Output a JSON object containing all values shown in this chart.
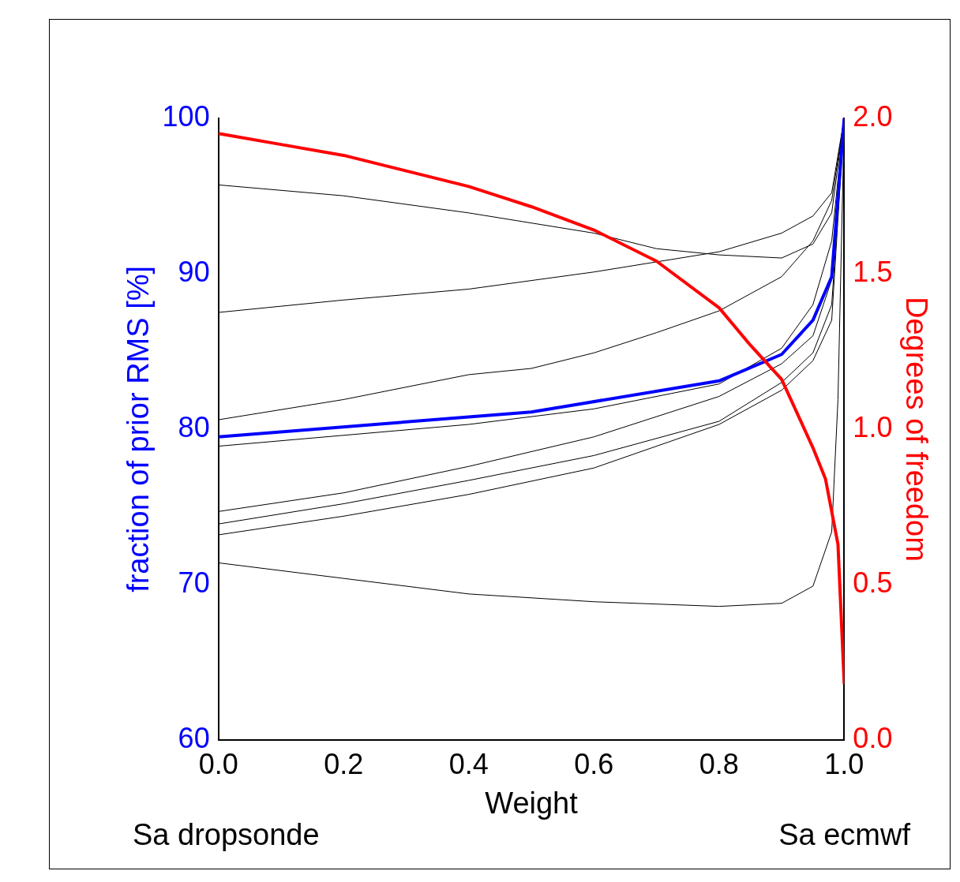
{
  "chart_data": {
    "type": "line",
    "xlabel": "Weight",
    "ylabel": "fraction of prior RMS [%]",
    "y2label": "Degrees of freedom",
    "xlim": [
      0,
      1
    ],
    "xticks": [
      {
        "value": 0,
        "label": "0.0"
      },
      {
        "value": 0.2,
        "label": "0.2"
      },
      {
        "value": 0.4,
        "label": "0.4"
      },
      {
        "value": 0.6,
        "label": "0.6"
      },
      {
        "value": 0.8,
        "label": "0.8"
      },
      {
        "value": 1,
        "label": "1.0"
      }
    ],
    "ylim": [
      60,
      100
    ],
    "yticks": [
      60,
      70,
      80,
      90,
      100
    ],
    "y2lim": [
      0,
      2
    ],
    "y2ticks": [
      {
        "value": 0,
        "label": "0.0"
      },
      {
        "value": 0.5,
        "label": "0.5"
      },
      {
        "value": 1,
        "label": "1.0"
      },
      {
        "value": 1.5,
        "label": "1.5"
      },
      {
        "value": 2,
        "label": "2.0"
      }
    ],
    "grid": false,
    "legend": false,
    "marker": "none",
    "line_style": "solid",
    "annotations": [
      "Sa dropsonde",
      "Sa ecmwf"
    ],
    "series": [
      {
        "color": "#000000",
        "x": [
          0,
          0.2,
          0.4,
          0.6,
          0.7,
          0.8,
          0.9,
          0.95,
          0.98,
          1
        ],
        "values": [
          95.7,
          95.0,
          93.9,
          92.6,
          91.6,
          91.2,
          91.0,
          91.9,
          93.9,
          100
        ]
      },
      {
        "color": "#000000",
        "x": [
          0,
          0.2,
          0.4,
          0.6,
          0.8,
          0.9,
          0.95,
          0.98,
          1
        ],
        "values": [
          87.5,
          88.3,
          89.0,
          90.1,
          91.4,
          92.6,
          93.7,
          95.2,
          100
        ]
      },
      {
        "color": "#000000",
        "x": [
          0,
          0.2,
          0.4,
          0.5,
          0.6,
          0.7,
          0.8,
          0.9,
          0.95,
          0.98,
          1
        ],
        "values": [
          80.6,
          81.9,
          83.5,
          83.9,
          84.9,
          86.2,
          87.6,
          89.8,
          92.1,
          94.7,
          100
        ]
      },
      {
        "color": "#000000",
        "x": [
          0,
          0.4,
          0.6,
          0.8,
          0.9,
          0.95,
          0.98,
          1
        ],
        "values": [
          78.9,
          80.3,
          81.3,
          82.9,
          85.2,
          88.0,
          92.1,
          100
        ]
      },
      {
        "color": "#000000",
        "x": [
          0,
          0.2,
          0.4,
          0.6,
          0.8,
          0.9,
          0.95,
          0.98,
          1
        ],
        "values": [
          74.7,
          75.9,
          77.6,
          79.5,
          82.1,
          84.2,
          86.0,
          89.6,
          100
        ]
      },
      {
        "color": "#000000",
        "x": [
          0,
          0.2,
          0.4,
          0.6,
          0.8,
          0.9,
          0.95,
          0.98,
          1
        ],
        "values": [
          73.9,
          75.2,
          76.7,
          78.3,
          80.5,
          83.0,
          84.9,
          88.0,
          100
        ]
      },
      {
        "color": "#000000",
        "x": [
          0,
          0.2,
          0.4,
          0.6,
          0.8,
          0.9,
          0.95,
          0.98,
          1
        ],
        "values": [
          73.2,
          74.4,
          75.8,
          77.5,
          80.3,
          82.5,
          84.4,
          87.0,
          100
        ]
      },
      {
        "color": "#000000",
        "x": [
          0,
          0.2,
          0.4,
          0.6,
          0.8,
          0.9,
          0.95,
          0.98,
          0.99,
          1
        ],
        "values": [
          71.4,
          70.4,
          69.4,
          68.9,
          68.6,
          68.8,
          69.9,
          73.4,
          81.9,
          100
        ]
      },
      {
        "color": "#0000ff",
        "x": [
          0,
          0.5,
          0.8,
          0.9,
          0.95,
          0.98,
          1
        ],
        "values": [
          79.5,
          81.1,
          83.1,
          84.8,
          87.0,
          89.8,
          100
        ]
      },
      {
        "color": "#ff0000",
        "axis": "y2",
        "x": [
          0,
          0.1,
          0.2,
          0.3,
          0.4,
          0.5,
          0.6,
          0.7,
          0.8,
          0.85,
          0.9,
          0.95,
          0.97,
          0.99,
          1
        ],
        "values": [
          1.95,
          1.915,
          1.88,
          1.83,
          1.78,
          1.715,
          1.64,
          1.54,
          1.39,
          1.27,
          1.16,
          0.94,
          0.84,
          0.63,
          0.18
        ]
      }
    ]
  }
}
